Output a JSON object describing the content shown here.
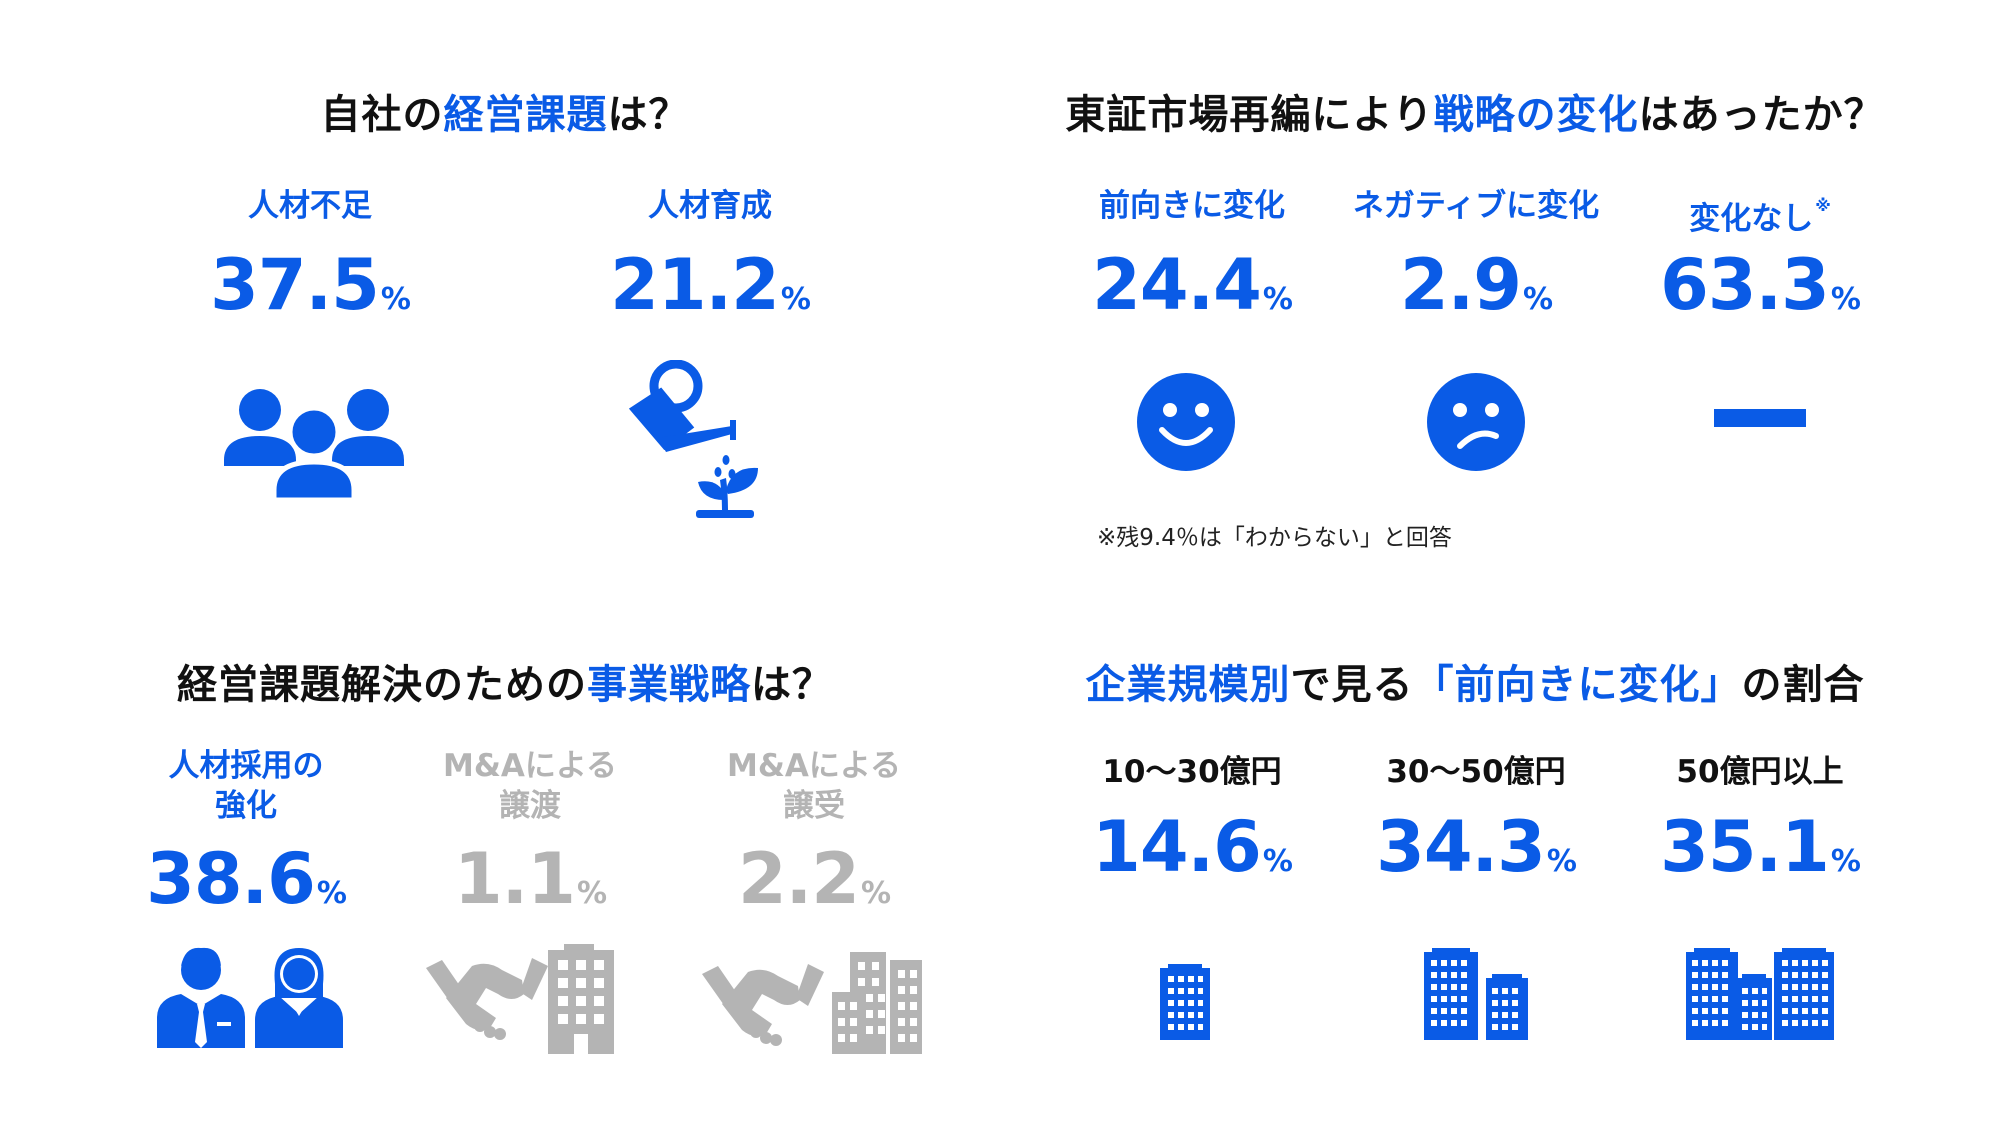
{
  "q1": {
    "title_pre": "自社の",
    "title_hl": "経営課題",
    "title_post": "は？",
    "items": [
      {
        "label": "人材不足",
        "value": "37.5",
        "unit": "%",
        "icon": "people-group-icon"
      },
      {
        "label": "人材育成",
        "value": "21.2",
        "unit": "%",
        "icon": "watering-can-plant-icon"
      }
    ]
  },
  "q2": {
    "title_pre": "東証市場再編により",
    "title_hl": "戦略の変化",
    "title_post": "はあったか？",
    "items": [
      {
        "label": "前向きに変化",
        "value": "24.4",
        "unit": "%",
        "icon": "smile-face-icon"
      },
      {
        "label": "ネガティブに変化",
        "value": "2.9",
        "unit": "%",
        "icon": "confused-face-icon"
      },
      {
        "label": "変化なし",
        "label_mark": "※",
        "value": "63.3",
        "unit": "%",
        "icon": "dash-icon"
      }
    ],
    "note": "※残9.4％は「わからない」と回答"
  },
  "q3": {
    "title_pre": "経営課題解決のための",
    "title_hl": "事業戦略",
    "title_post": "は？",
    "items": [
      {
        "label_line1": "人材採用の",
        "label_line2": "強化",
        "value": "38.6",
        "unit": "%",
        "icon": "business-people-icon",
        "color": "#0a5be6"
      },
      {
        "label_line1": "M&Aによる",
        "label_line2": "譲渡",
        "value": "1.1",
        "unit": "%",
        "icon": "handshake-building-icon",
        "color": "#b4b4b4"
      },
      {
        "label_line1": "M&Aによる",
        "label_line2": "譲受",
        "value": "2.2",
        "unit": "%",
        "icon": "handshake-buildings-icon",
        "color": "#b4b4b4"
      }
    ]
  },
  "q4": {
    "title_hl1": "企業規模別",
    "title_mid": "で見る",
    "title_hl2": "「前向きに変化」",
    "title_post": "の割合",
    "items": [
      {
        "label": "10～30億円",
        "value": "14.6",
        "unit": "%",
        "icon": "small-building-icon"
      },
      {
        "label": "30～50億円",
        "value": "34.3",
        "unit": "%",
        "icon": "medium-buildings-icon"
      },
      {
        "label": "50億円以上",
        "value": "35.1",
        "unit": "%",
        "icon": "large-buildings-icon"
      }
    ]
  },
  "colors": {
    "accent": "#0a5be6",
    "muted": "#b4b4b4",
    "text": "#111111"
  }
}
